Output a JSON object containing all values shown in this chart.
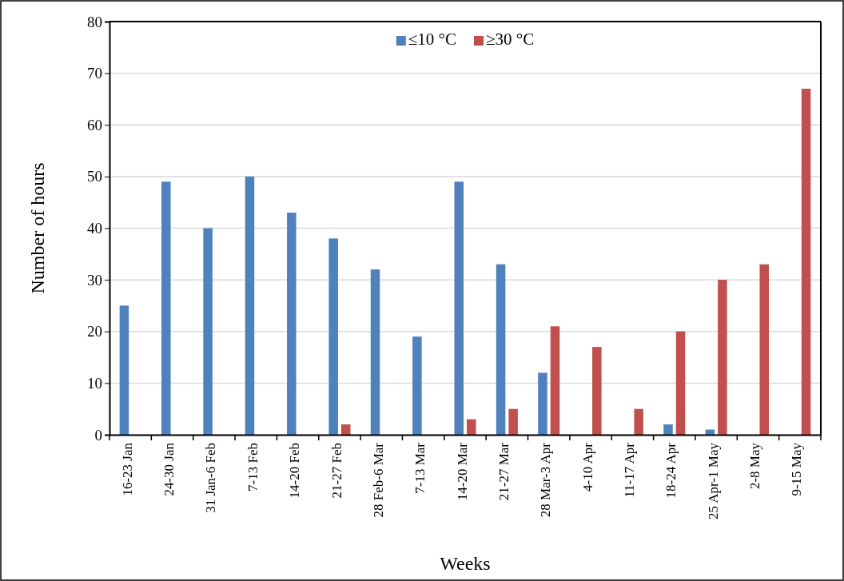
{
  "chart_data": {
    "type": "bar",
    "xlabel": "Weeks",
    "ylabel": "Number of hours",
    "categories": [
      "16-23 Jan",
      "24-30 Jan",
      "31 Jan-6 Feb",
      "7-13 Feb",
      "14-20 Feb",
      "21-27 Feb",
      "28 Feb-6 Mar",
      "7-13 Mar",
      "14-20 Mar",
      "21-27 Mar",
      "28 Mar-3 Apr",
      "4-10 Apr",
      "11-17 Apr",
      "18-24 Apr",
      "25 Apr-1 May",
      "2-8 May",
      "9-15 May"
    ],
    "series": [
      {
        "name": "≤10 °C",
        "color": "#4f81bd",
        "values": [
          25,
          49,
          40,
          50,
          43,
          38,
          32,
          19,
          49,
          33,
          12,
          0,
          0,
          2,
          1,
          0,
          0
        ]
      },
      {
        "name": "≥30 °C",
        "color": "#c0504d",
        "values": [
          0,
          0,
          0,
          0,
          0,
          2,
          0,
          0,
          3,
          5,
          21,
          17,
          5,
          20,
          30,
          33,
          67
        ]
      }
    ],
    "ylim": [
      0,
      80
    ],
    "yticks": [
      0,
      10,
      20,
      30,
      40,
      50,
      60,
      70,
      80
    ],
    "grid": "y",
    "legend": "top"
  }
}
